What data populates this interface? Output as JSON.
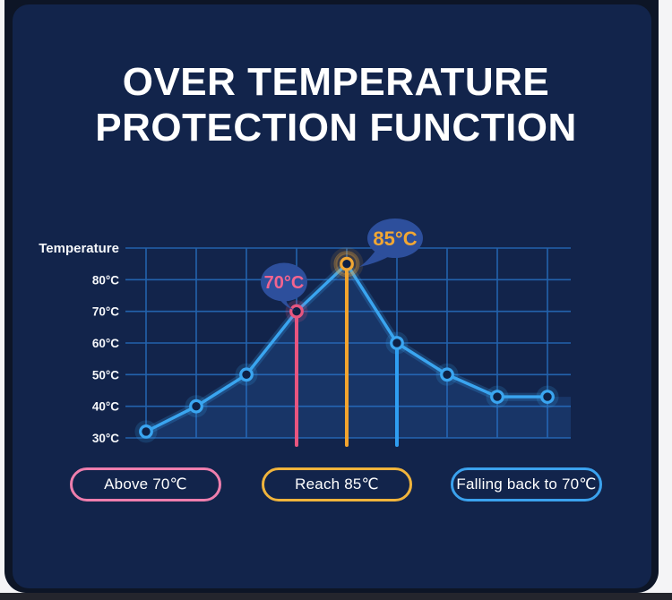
{
  "title": {
    "line1": "OVER TEMPERATURE",
    "line2": "PROTECTION FUNCTION"
  },
  "chart_data": {
    "type": "line",
    "ylabel": "Temperature",
    "ylim": [
      30,
      90
    ],
    "grid": true,
    "y_tick_values": [
      80,
      70,
      60,
      50,
      40,
      30
    ],
    "y_tick_labels": [
      "80°C",
      "70°C",
      "60°C",
      "50°C",
      "40°C",
      "30°C"
    ],
    "x": [
      0,
      1,
      2,
      3,
      4,
      5,
      6,
      7,
      8
    ],
    "series": [
      {
        "name": "temperature",
        "values": [
          32,
          40,
          50,
          70,
          85,
          60,
          50,
          43,
          43
        ]
      }
    ],
    "line_color": "#3aa5f0",
    "area_color": "rgba(47,114,206,0.22)",
    "grid_color": "#2466b2",
    "annotations": [
      {
        "text": "70°C",
        "point": 3,
        "text_color": "#f2648f",
        "bubble_color": "#2d4f9c"
      },
      {
        "text": "85°C",
        "point": 4,
        "text_color": "#f2a733",
        "bubble_color": "#2d4f9c"
      }
    ],
    "droplines": [
      {
        "point": 3,
        "color": "#e8557f"
      },
      {
        "point": 4,
        "color": "#f2a42e"
      },
      {
        "point": 5,
        "color": "#2f9ef2"
      }
    ],
    "point_ring_colors": {
      "default": "#3aa5f0",
      "3": "#e8557f",
      "4": "#f2a733"
    }
  },
  "legend": [
    {
      "label": "Above 70℃",
      "color": "#ee7ead"
    },
    {
      "label": "Reach 85℃",
      "color": "#f0b43c"
    },
    {
      "label": "Falling back to 70℃",
      "color": "#3ba2ee"
    }
  ],
  "colors": {
    "page": "#f4f4f6",
    "card": "#12244b",
    "card_rim": "#0d1526",
    "bottom_strip": "#24252d",
    "label_text": "#f5f7fa"
  }
}
